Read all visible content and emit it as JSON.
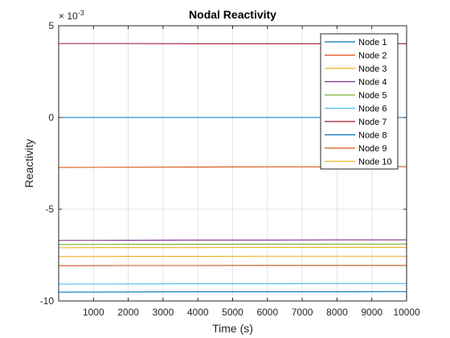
{
  "chart_data": {
    "type": "line",
    "title": "Nodal Reactivity",
    "xlabel": "Time (s)",
    "ylabel": "Reactivity",
    "y_exponent_label": "× 10",
    "y_exponent_power": "-3",
    "xlim": [
      0,
      10000
    ],
    "ylim": [
      -10,
      5
    ],
    "x_ticks": [
      1000,
      2000,
      3000,
      4000,
      5000,
      6000,
      7000,
      8000,
      9000,
      10000
    ],
    "x_tick_labels": [
      "1000",
      "2000",
      "3000",
      "4000",
      "5000",
      "6000",
      "7000",
      "8000",
      "9000",
      "10000"
    ],
    "y_ticks": [
      5,
      0,
      -5,
      -10
    ],
    "y_tick_labels": [
      "5",
      "0",
      "-5",
      "-10"
    ],
    "grid": true,
    "legend_position": "top-right",
    "x": [
      0,
      2000,
      4000,
      6000,
      8000,
      10000
    ],
    "series": [
      {
        "name": "Node 1",
        "color": "#0072BD",
        "values": [
          0.0,
          0.0,
          0.0,
          0.0,
          0.0,
          0.0
        ]
      },
      {
        "name": "Node 2",
        "color": "#D95319",
        "values": [
          -2.72,
          -2.71,
          -2.7,
          -2.69,
          -2.69,
          -2.68
        ]
      },
      {
        "name": "Node 3",
        "color": "#EDB120",
        "values": [
          -7.58,
          -7.57,
          -7.57,
          -7.56,
          -7.56,
          -7.56
        ]
      },
      {
        "name": "Node 4",
        "color": "#7E2F8E",
        "values": [
          -6.7,
          -6.69,
          -6.68,
          -6.68,
          -6.67,
          -6.67
        ]
      },
      {
        "name": "Node 5",
        "color": "#77AC30",
        "values": [
          -6.92,
          -6.91,
          -6.91,
          -6.9,
          -6.9,
          -6.9
        ]
      },
      {
        "name": "Node 6",
        "color": "#4DBEEE",
        "values": [
          -9.08,
          -9.07,
          -9.06,
          -9.06,
          -9.05,
          -9.05
        ]
      },
      {
        "name": "Node 7",
        "color": "#A2142F",
        "values": [
          4.03,
          4.03,
          4.02,
          4.02,
          4.02,
          4.02
        ]
      },
      {
        "name": "Node 8",
        "color": "#0072BD",
        "values": [
          -9.52,
          -9.51,
          -9.5,
          -9.5,
          -9.5,
          -9.49
        ]
      },
      {
        "name": "Node 9",
        "color": "#D95319",
        "values": [
          -8.08,
          -8.07,
          -8.07,
          -8.06,
          -8.06,
          -8.06
        ]
      },
      {
        "name": "Node 10",
        "color": "#EDB120",
        "values": [
          -7.1,
          -7.09,
          -7.09,
          -7.08,
          -7.08,
          -7.08
        ]
      }
    ]
  }
}
